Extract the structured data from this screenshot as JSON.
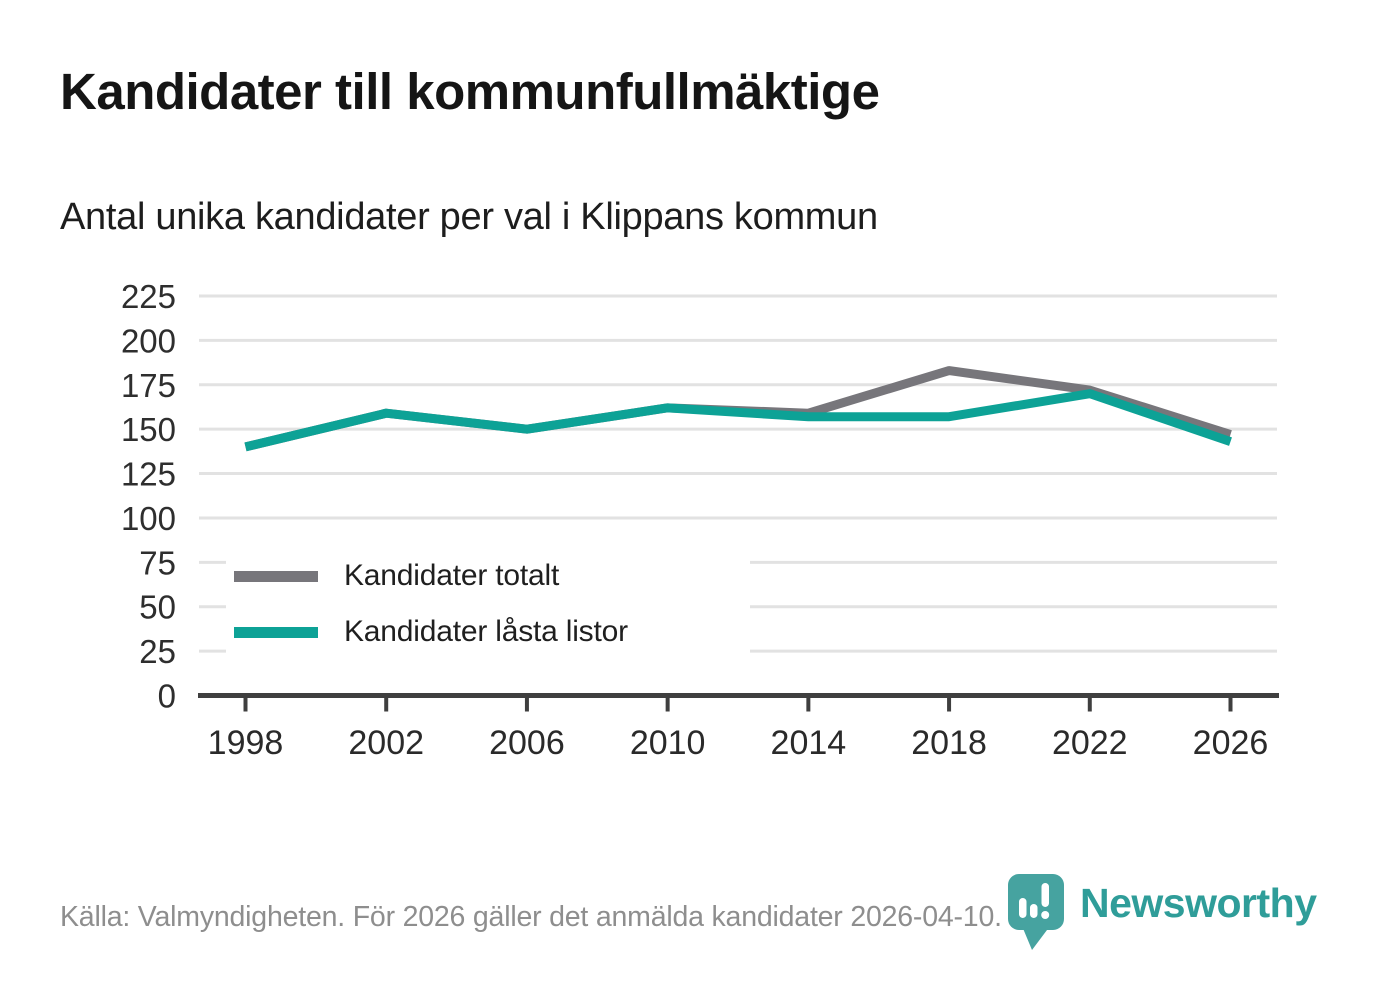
{
  "header": {
    "title": "Kandidater till kommunfullmäktige",
    "subtitle": "Antal unika kandidater per val i Klippans kommun"
  },
  "chart_data": {
    "type": "line",
    "title": "Kandidater till kommunfullmäktige",
    "subtitle": "Antal unika kandidater per val i Klippans kommun",
    "x": [
      "1998",
      "2002",
      "2006",
      "2010",
      "2014",
      "2018",
      "2022",
      "2026"
    ],
    "series": [
      {
        "name": "Kandidater totalt",
        "color": "#77767b",
        "values": [
          140,
          159,
          150,
          162,
          159,
          183,
          172,
          147
        ]
      },
      {
        "name": "Kandidater låsta listor",
        "color": "#0da296",
        "values": [
          140,
          159,
          150,
          162,
          157,
          157,
          170,
          143
        ]
      }
    ],
    "ylim": [
      0,
      225
    ],
    "ytick_step": 25,
    "grid": true,
    "grid_color": "#e2e2e2",
    "axis_color": "#3f3f3f",
    "tick_label_color": "#2e2e2e",
    "legend_position": "inside-lower-left"
  },
  "footer": {
    "source": "Källa: Valmyndigheten. För 2026 gäller det anmälda kandidater 2026-04-10.",
    "brand": "Newsworthy",
    "brand_color": "#2f9d99",
    "pin_color": "#46a3a0"
  }
}
